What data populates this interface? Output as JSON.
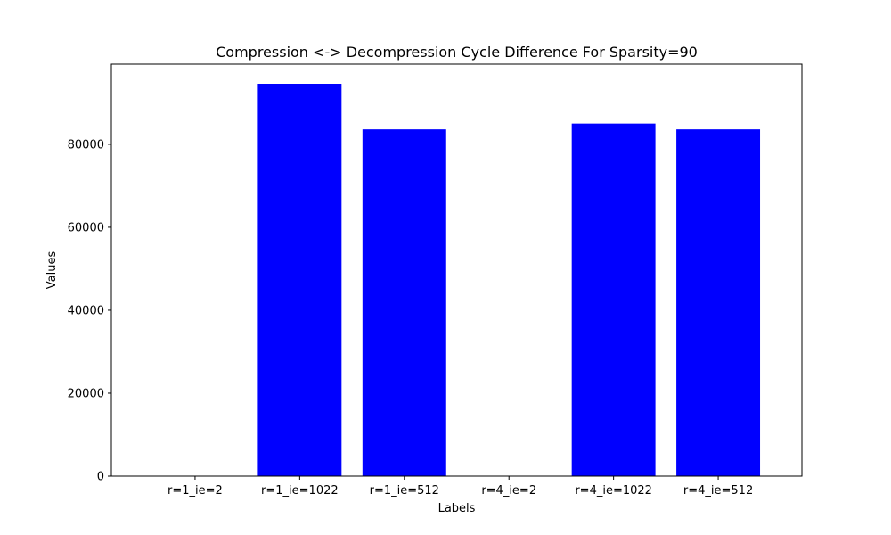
{
  "chart_data": {
    "type": "bar",
    "title": "Compression <-> Decompression Cycle Difference For Sparsity=90",
    "xlabel": "Labels",
    "ylabel": "Values",
    "categories": [
      "r=1_ie=2",
      "r=1_ie=1022",
      "r=1_ie=512",
      "r=4_ie=2",
      "r=4_ie=1022",
      "r=4_ie=512"
    ],
    "values": [
      0,
      94600,
      83600,
      0,
      85000,
      83600
    ],
    "ylim": [
      0,
      99330
    ],
    "yticks": [
      0,
      20000,
      40000,
      60000,
      80000
    ],
    "ytick_labels": [
      "0",
      "20000",
      "40000",
      "60000",
      "80000"
    ],
    "bar_color": "#0000ff",
    "grid": false,
    "legend": "none"
  }
}
